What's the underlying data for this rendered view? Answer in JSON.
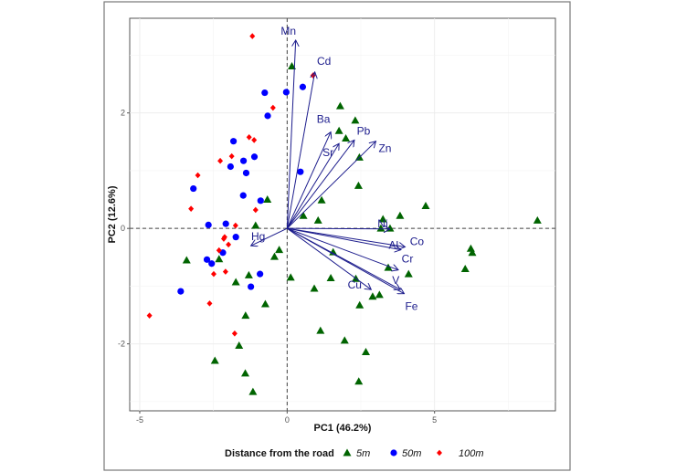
{
  "chart_data": {
    "type": "scatter",
    "subtype": "pca-biplot",
    "xlabel": "PC1 (46.2%)",
    "ylabel": "PC2 (12.6%)",
    "xlim": [
      -5.34,
      9.1
    ],
    "ylim": [
      -3.16,
      3.64
    ],
    "xticks": [
      -5,
      0,
      5
    ],
    "yticks": [
      -2,
      0,
      2
    ],
    "grid": true,
    "legend": {
      "title": "Distance from the road",
      "placement": "bottom"
    },
    "colors": {
      "5m": "#006400",
      "50m": "#0000ff",
      "100m": "#ff0000",
      "arrows": "#1c1c8c"
    },
    "series": [
      {
        "name": "5m",
        "marker": "triangle",
        "points": [
          [
            0.16,
            2.81
          ],
          [
            1.8,
            2.12
          ],
          [
            2.31,
            1.87
          ],
          [
            1.76,
            1.69
          ],
          [
            1.99,
            1.56
          ],
          [
            2.45,
            1.23
          ],
          [
            2.42,
            0.74
          ],
          [
            -0.67,
            0.5
          ],
          [
            1.17,
            0.49
          ],
          [
            4.7,
            0.39
          ],
          [
            3.83,
            0.22
          ],
          [
            0.55,
            0.22
          ],
          [
            1.05,
            0.14
          ],
          [
            -1.07,
            0.05
          ],
          [
            3.25,
            0.16
          ],
          [
            8.49,
            0.14
          ],
          [
            3.18,
            0
          ],
          [
            3.49,
            0
          ],
          [
            6.23,
            -0.35
          ],
          [
            6.28,
            -0.42
          ],
          [
            6.04,
            -0.7
          ],
          [
            -0.27,
            -0.37
          ],
          [
            -0.43,
            -0.49
          ],
          [
            1.56,
            -0.41
          ],
          [
            3.43,
            -0.68
          ],
          [
            4.12,
            -0.79
          ],
          [
            -2.31,
            -0.53
          ],
          [
            -3.41,
            -0.55
          ],
          [
            -1.3,
            -0.81
          ],
          [
            -1.74,
            -0.93
          ],
          [
            0.12,
            -0.85
          ],
          [
            1.48,
            -0.86
          ],
          [
            2.33,
            -0.87
          ],
          [
            0.92,
            -1.04
          ],
          [
            2.9,
            -1.18
          ],
          [
            3.13,
            -1.15
          ],
          [
            2.46,
            -1.33
          ],
          [
            -0.74,
            -1.31
          ],
          [
            -1.41,
            -1.51
          ],
          [
            1.13,
            -1.77
          ],
          [
            1.95,
            -1.94
          ],
          [
            2.67,
            -2.14
          ],
          [
            -1.63,
            -2.03
          ],
          [
            -2.45,
            -2.29
          ],
          [
            -1.42,
            -2.51
          ],
          [
            2.43,
            -2.65
          ],
          [
            -1.16,
            -2.83
          ]
        ]
      },
      {
        "name": "50m",
        "marker": "circle",
        "points": [
          [
            0.53,
            2.45
          ],
          [
            -0.03,
            2.36
          ],
          [
            -0.76,
            2.35
          ],
          [
            -0.66,
            1.95
          ],
          [
            -1.82,
            1.51
          ],
          [
            -1.48,
            1.17
          ],
          [
            -1.11,
            1.24
          ],
          [
            -1.92,
            1.07
          ],
          [
            -1.39,
            0.96
          ],
          [
            0.45,
            0.98
          ],
          [
            -3.18,
            0.69
          ],
          [
            -1.49,
            0.57
          ],
          [
            -0.9,
            0.48
          ],
          [
            -2.67,
            0.06
          ],
          [
            -2.08,
            0.08
          ],
          [
            -1.74,
            -0.15
          ],
          [
            -2.18,
            -0.42
          ],
          [
            -2.72,
            -0.54
          ],
          [
            -2.56,
            -0.61
          ],
          [
            -0.92,
            -0.79
          ],
          [
            -1.23,
            -1.01
          ],
          [
            -3.61,
            -1.09
          ]
        ]
      },
      {
        "name": "100m",
        "marker": "diamond",
        "points": [
          [
            -1.18,
            3.33
          ],
          [
            0.88,
            2.65
          ],
          [
            -0.48,
            2.09
          ],
          [
            -1.29,
            1.58
          ],
          [
            -1.12,
            1.53
          ],
          [
            -2.27,
            1.17
          ],
          [
            -1.88,
            1.25
          ],
          [
            -3.03,
            0.92
          ],
          [
            -3.26,
            0.34
          ],
          [
            -1.07,
            0.32
          ],
          [
            -1.75,
            0.05
          ],
          [
            -2.12,
            -0.15
          ],
          [
            -2.15,
            -0.18
          ],
          [
            -1.99,
            -0.28
          ],
          [
            -2.31,
            -0.38
          ],
          [
            -2.49,
            -0.79
          ],
          [
            -2.09,
            -0.75
          ],
          [
            -2.63,
            -1.3
          ],
          [
            -4.67,
            -1.51
          ],
          [
            -1.78,
            -1.82
          ]
        ]
      }
    ],
    "loadings": [
      {
        "name": "Mn",
        "x": 0.29,
        "y": 3.26
      },
      {
        "name": "Cd",
        "x": 0.94,
        "y": 2.71
      },
      {
        "name": "Ba",
        "x": 1.48,
        "y": 1.67
      },
      {
        "name": "Sr",
        "x": 1.76,
        "y": 1.47
      },
      {
        "name": "Pb",
        "x": 2.28,
        "y": 1.53
      },
      {
        "name": "Zn",
        "x": 3.01,
        "y": 1.51
      },
      {
        "name": "Ni",
        "x": 3.49,
        "y": -0.01
      },
      {
        "name": "Al",
        "x": 3.86,
        "y": -0.37
      },
      {
        "name": "Co",
        "x": 4.0,
        "y": -0.32
      },
      {
        "name": "Cr",
        "x": 3.77,
        "y": -0.72
      },
      {
        "name": "V",
        "x": 3.84,
        "y": -1.06
      },
      {
        "name": "Fe",
        "x": 3.97,
        "y": -1.13
      },
      {
        "name": "Cu",
        "x": 2.85,
        "y": -1.06
      },
      {
        "name": "Hg",
        "x": -1.23,
        "y": -0.3
      }
    ]
  }
}
